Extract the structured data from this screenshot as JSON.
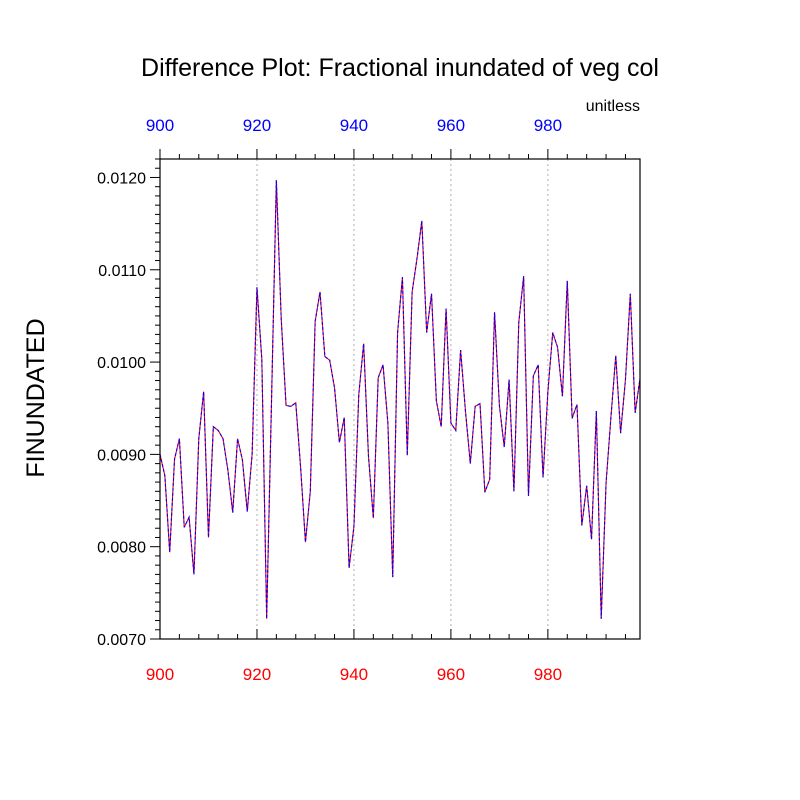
{
  "chart_data": {
    "type": "line",
    "title": "Difference Plot: Fractional inundated of veg col",
    "units": "unitless",
    "ylabel": "FINUNDATED",
    "xlim": [
      900,
      999
    ],
    "ylim": [
      0.007,
      0.0122
    ],
    "xticks": [
      900,
      920,
      940,
      960,
      980
    ],
    "yticks": [
      0.007,
      0.008,
      0.009,
      0.01,
      0.011,
      0.012
    ],
    "ytick_labels": [
      "0.0070",
      "0.0080",
      "0.0090",
      "0.0100",
      "0.0110",
      "0.0120"
    ],
    "grid": "vertical-dotted",
    "colors": {
      "top_ticks": "#0000ff",
      "bottom_ticks": "#ff0000",
      "line_a": "#ff0000",
      "line_b": "#0000ff"
    },
    "series": [
      {
        "values": [
          0.009,
          0.00877,
          0.00794,
          0.00895,
          0.00917,
          0.00821,
          0.00832,
          0.0077,
          0.00917,
          0.00968,
          0.0081,
          0.0093,
          0.00926,
          0.00917,
          0.00883,
          0.00837,
          0.00917,
          0.00894,
          0.00838,
          0.009,
          0.01081,
          0.01003,
          0.00722,
          0.00958,
          0.01197,
          0.01047,
          0.00953,
          0.00952,
          0.00956,
          0.00886,
          0.00805,
          0.0086,
          0.01044,
          0.01076,
          0.01006,
          0.01002,
          0.00972,
          0.00913,
          0.0094,
          0.00777,
          0.00822,
          0.00965,
          0.0102,
          0.00898,
          0.00831,
          0.00983,
          0.00997,
          0.00934,
          0.00767,
          0.01032,
          0.01092,
          0.00899,
          0.01076,
          0.01112,
          0.01153,
          0.01032,
          0.01074,
          0.00958,
          0.0093,
          0.01058,
          0.00934,
          0.00926,
          0.01013,
          0.00947,
          0.0089,
          0.00952,
          0.00955,
          0.00859,
          0.00873,
          0.01054,
          0.00953,
          0.00908,
          0.00981,
          0.0086,
          0.01043,
          0.01093,
          0.00855,
          0.00985,
          0.00997,
          0.00875,
          0.00968,
          0.01032,
          0.01016,
          0.00963,
          0.01088,
          0.00939,
          0.00954,
          0.00823,
          0.00866,
          0.00808,
          0.00947,
          0.00722,
          0.00869,
          0.0094,
          0.01007,
          0.00923,
          0.00981,
          0.01074,
          0.00945,
          0.00982
        ]
      }
    ]
  }
}
